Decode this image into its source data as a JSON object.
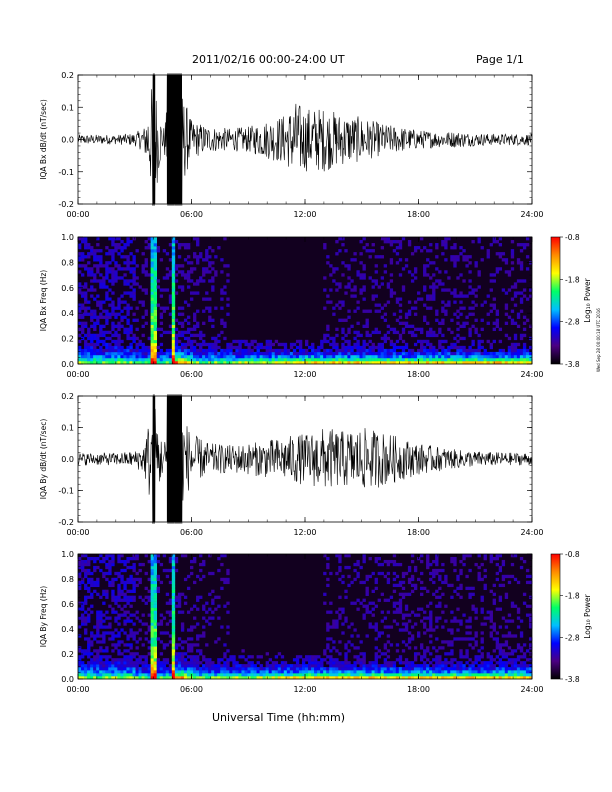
{
  "header": {
    "title": "2011/02/16  00:00-24:00 UT",
    "page": "Page 1/1"
  },
  "footer": {
    "xlabel": "Universal Time (hh:mm)"
  },
  "side_stamp": "Wed Sep 28 00:00:18 UTC 2016",
  "colors": {
    "trace": "#000000",
    "spectrogram_floor": "#12001f",
    "colormap": [
      "#000000",
      "#4b0082",
      "#0000ff",
      "#00bfff",
      "#00ff66",
      "#ffff00",
      "#ff8c00",
      "#ff0000"
    ]
  },
  "chart_data": [
    {
      "type": "line",
      "panel": "Bx dB/dt",
      "ylabel": "IQA Bx dB/dt (nT/sec)",
      "ylim": [
        -0.2,
        0.2
      ],
      "yticks": [
        "0.2",
        "0.1",
        "0.0",
        "-0.1",
        "-0.2"
      ],
      "ytick_values": [
        0.2,
        0.1,
        0.0,
        -0.1,
        -0.2
      ],
      "xlim_hours": [
        0,
        24
      ],
      "xticks": [
        "00:00",
        "06:00",
        "12:00",
        "18:00",
        "24:00"
      ],
      "envelope": {
        "hour": [
          0,
          1,
          2,
          3,
          3.5,
          4,
          4.5,
          5,
          5.5,
          6,
          7,
          8,
          9,
          10,
          11,
          11.5,
          12,
          13,
          14,
          15,
          16,
          17,
          18,
          19,
          20,
          21,
          22,
          23,
          24
        ],
        "amplitude": [
          0.015,
          0.015,
          0.015,
          0.02,
          0.04,
          0.2,
          0.03,
          0.2,
          0.15,
          0.06,
          0.04,
          0.035,
          0.04,
          0.06,
          0.08,
          0.12,
          0.1,
          0.1,
          0.08,
          0.07,
          0.05,
          0.04,
          0.03,
          0.025,
          0.025,
          0.02,
          0.018,
          0.018,
          0.018
        ]
      }
    },
    {
      "type": "heatmap",
      "panel": "Bx Freq",
      "ylabel": "IQA Bx Freq (Hz)",
      "ylim": [
        0.0,
        1.0
      ],
      "yticks": [
        "1.0",
        "0.8",
        "0.6",
        "0.4",
        "0.2",
        "0.0"
      ],
      "ytick_values": [
        1.0,
        0.8,
        0.6,
        0.4,
        0.2,
        0.0
      ],
      "xlim_hours": [
        0,
        24
      ],
      "xticks": [
        "00:00",
        "06:00",
        "12:00",
        "18:00",
        "24:00"
      ],
      "colorbar": {
        "label": "Log₁₀ Power",
        "ticks": [
          "-0.8",
          "-1.8",
          "-2.8",
          "-3.8"
        ],
        "range": [
          -3.8,
          -0.8
        ]
      },
      "bursts_hours": [
        4.0,
        5.0
      ]
    },
    {
      "type": "line",
      "panel": "By dB/dt",
      "ylabel": "IQA By dB/dt (nT/sec)",
      "ylim": [
        -0.2,
        0.2
      ],
      "yticks": [
        "0.2",
        "0.1",
        "0.0",
        "-0.1",
        "-0.2"
      ],
      "ytick_values": [
        0.2,
        0.1,
        0.0,
        -0.1,
        -0.2
      ],
      "xlim_hours": [
        0,
        24
      ],
      "xticks": [
        "00:00",
        "06:00",
        "12:00",
        "18:00",
        "24:00"
      ],
      "envelope": {
        "hour": [
          0,
          1,
          2,
          3,
          3.5,
          4,
          4.5,
          5,
          5.5,
          6,
          7,
          8,
          9,
          10,
          11,
          11.5,
          12,
          13,
          14,
          15,
          16,
          17,
          18,
          19,
          20,
          21,
          22,
          23,
          24
        ],
        "amplitude": [
          0.02,
          0.02,
          0.02,
          0.025,
          0.05,
          0.2,
          0.04,
          0.2,
          0.15,
          0.08,
          0.05,
          0.045,
          0.05,
          0.06,
          0.07,
          0.08,
          0.08,
          0.1,
          0.09,
          0.1,
          0.09,
          0.07,
          0.05,
          0.04,
          0.03,
          0.025,
          0.022,
          0.02,
          0.02
        ]
      }
    },
    {
      "type": "heatmap",
      "panel": "By Freq",
      "ylabel": "IQA By Freq (Hz)",
      "ylim": [
        0.0,
        1.0
      ],
      "yticks": [
        "1.0",
        "0.8",
        "0.6",
        "0.4",
        "0.2",
        "0.0"
      ],
      "ytick_values": [
        1.0,
        0.8,
        0.6,
        0.4,
        0.2,
        0.0
      ],
      "xlim_hours": [
        0,
        24
      ],
      "xticks": [
        "00:00",
        "06:00",
        "12:00",
        "18:00",
        "24:00"
      ],
      "colorbar": {
        "label": "Log₁₀ Power",
        "ticks": [
          "-0.8",
          "-1.8",
          "-2.8",
          "-3.8"
        ],
        "range": [
          -3.8,
          -0.8
        ]
      },
      "bursts_hours": [
        4.0,
        5.0
      ]
    }
  ]
}
